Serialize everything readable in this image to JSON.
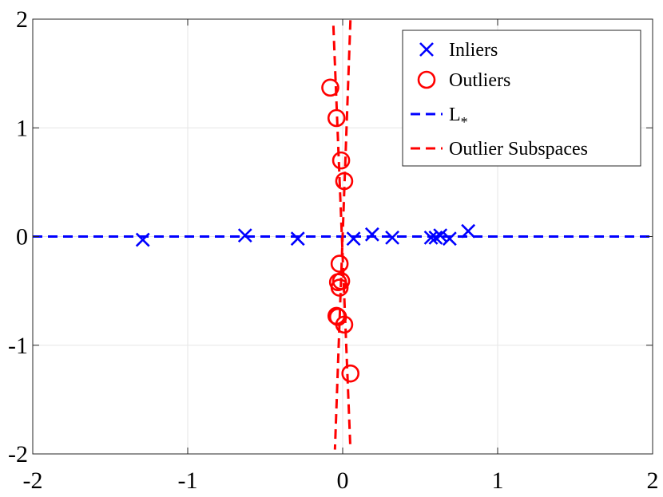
{
  "chart_data": {
    "type": "scatter",
    "title": "",
    "xlabel": "",
    "ylabel": "",
    "xlim": [
      -2,
      2
    ],
    "ylim": [
      -2,
      2
    ],
    "xticks": [
      -2,
      -1,
      0,
      1,
      2
    ],
    "yticks": [
      -2,
      -1,
      0,
      1,
      2
    ],
    "grid": true,
    "legend_position": "top-right",
    "series": [
      {
        "name": "Inliers",
        "kind": "points",
        "marker": "x",
        "color": "#0000ff",
        "points": [
          [
            -1.29,
            -0.03
          ],
          [
            -0.63,
            0.01
          ],
          [
            -0.29,
            -0.02
          ],
          [
            0.07,
            -0.02
          ],
          [
            0.19,
            0.02
          ],
          [
            0.32,
            -0.01
          ],
          [
            0.57,
            -0.01
          ],
          [
            0.6,
            -0.01
          ],
          [
            0.63,
            0.01
          ],
          [
            0.69,
            -0.02
          ],
          [
            0.81,
            0.05
          ]
        ]
      },
      {
        "name": "Outliers",
        "kind": "points",
        "marker": "o",
        "color": "#ff0000",
        "points": [
          [
            -0.08,
            1.37
          ],
          [
            -0.04,
            1.09
          ],
          [
            -0.01,
            0.7
          ],
          [
            0.01,
            0.51
          ],
          [
            -0.02,
            -0.25
          ],
          [
            -0.03,
            -0.42
          ],
          [
            -0.01,
            -0.41
          ],
          [
            -0.02,
            -0.47
          ],
          [
            -0.04,
            -0.73
          ],
          [
            -0.03,
            -0.74
          ],
          [
            0.01,
            -0.81
          ],
          [
            0.05,
            -1.26
          ]
        ]
      },
      {
        "name": "L_*",
        "display_name": "L",
        "subscript": "*",
        "kind": "dashed-line",
        "color": "#0000ff",
        "points": [
          [
            -2,
            0
          ],
          [
            2,
            0
          ]
        ]
      },
      {
        "name": "Outlier Subspaces",
        "kind": "dashed-line",
        "color": "#ff0000",
        "lines": [
          [
            [
              -0.06,
              1.94
            ],
            [
              0.05,
              -1.96
            ]
          ],
          [
            [
              0.05,
              1.99
            ],
            [
              -0.05,
              -1.96
            ]
          ]
        ]
      }
    ]
  }
}
